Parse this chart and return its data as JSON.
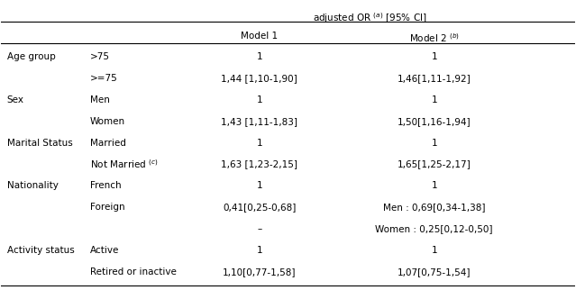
{
  "title_line1": "adjusted OR  ⁺ [95% CI]",
  "col_headers": [
    "Model 1",
    "Model 2 ⁻"
  ],
  "rows": [
    {
      "category": "Age group",
      "subcategory": ">75",
      "model1": "1",
      "model2": "1"
    },
    {
      "category": "",
      "subcategory": ">=75",
      "model1": "1,44 [1,10-1,90]",
      "model2": "1,46[1,11-1,92]"
    },
    {
      "category": "Sex",
      "subcategory": "Men",
      "model1": "1",
      "model2": "1"
    },
    {
      "category": "",
      "subcategory": "Women",
      "model1": "1,43 [1,11-1,83]",
      "model2": "1,50[1,16-1,94]"
    },
    {
      "category": "Marital Status",
      "subcategory": "Married",
      "model1": "1",
      "model2": "1"
    },
    {
      "category": "",
      "subcategory": "Not Married ⁼",
      "model1": "1,63 [1,23-2,15]",
      "model2": "1,65[1,25-2,17]"
    },
    {
      "category": "Nationality",
      "subcategory": "French",
      "model1": "1",
      "model2": "1"
    },
    {
      "category": "",
      "subcategory": "Foreign",
      "model1": "0,41[0,25-0,68]",
      "model2": "Men : 0,69[0,34-1,38]"
    },
    {
      "category": "",
      "subcategory": "",
      "model1": "–",
      "model2": "Women : 0,25[0,12-0,50]"
    },
    {
      "category": "Activity status",
      "subcategory": "Active",
      "model1": "1",
      "model2": "1"
    },
    {
      "category": "",
      "subcategory": "Retired or inactive",
      "model1": "1,10[0,77-1,58]",
      "model2": "1,07[0,75-1,54]"
    }
  ],
  "bg_color": "#ffffff",
  "text_color": "#000000",
  "font_size": 7.5,
  "header_font_size": 7.5,
  "title_font_size": 7.5,
  "line_color": "#000000"
}
